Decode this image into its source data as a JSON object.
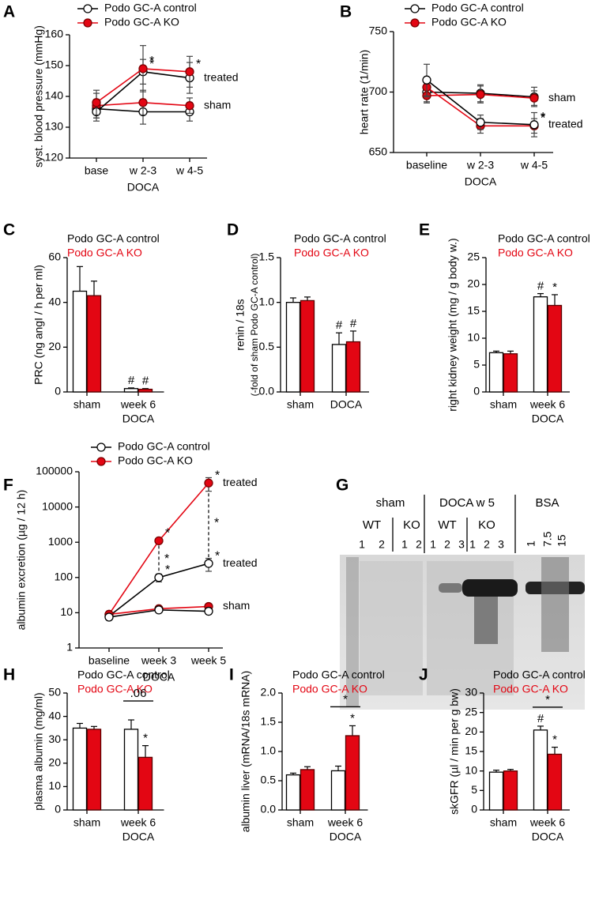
{
  "chart_data": [
    {
      "type": "line",
      "panel": "A",
      "ylabel": "syst. blood pressure (mmHg)",
      "xlabel": "DOCA",
      "categories": [
        "base",
        "w 2-3",
        "w 4-5"
      ],
      "ylim": [
        120,
        160
      ],
      "yticks": [
        120,
        130,
        140,
        150,
        160
      ],
      "legend": [
        {
          "name": "Podo GC-A control",
          "color": "#000000",
          "marker_fill": "#ffffff"
        },
        {
          "name": "Podo GC-A KO",
          "color": "#e30613",
          "marker_fill": "#e30613"
        }
      ],
      "series": [
        {
          "color": "#000000",
          "marker_fill": "#ffffff",
          "values": [
            136,
            135,
            135
          ],
          "errors": [
            3,
            4,
            3
          ]
        },
        {
          "color": "#e30613",
          "marker_fill": "#e30613",
          "values": [
            137,
            138,
            137
          ],
          "errors": [
            4,
            4,
            2.5
          ],
          "label": "sham"
        },
        {
          "color": "#000000",
          "marker_fill": "#ffffff",
          "values": [
            135,
            148,
            146
          ],
          "errors": [
            3,
            4,
            5
          ],
          "stars": [
            null,
            "*",
            null
          ],
          "label": "treated"
        },
        {
          "color": "#e30613",
          "marker_fill": "#e30613",
          "values": [
            138,
            149,
            148
          ],
          "errors": [
            4,
            7.5,
            5
          ],
          "stars": [
            null,
            "*",
            "*"
          ]
        }
      ]
    },
    {
      "type": "line",
      "panel": "B",
      "ylabel": "heart rate (1/min)",
      "xlabel": "DOCA",
      "categories": [
        "baseline",
        "w 2-3",
        "w 4-5"
      ],
      "ylim": [
        650,
        750
      ],
      "yticks": [
        650,
        700,
        750
      ],
      "legend": [
        {
          "name": "Podo GC-A control",
          "color": "#000000",
          "marker_fill": "#ffffff"
        },
        {
          "name": "Podo GC-A KO",
          "color": "#e30613",
          "marker_fill": "#e30613"
        }
      ],
      "series": [
        {
          "color": "#000000",
          "marker_fill": "#ffffff",
          "values": [
            700,
            699,
            696
          ],
          "errors": [
            8,
            7,
            8
          ]
        },
        {
          "color": "#e30613",
          "marker_fill": "#e30613",
          "values": [
            697,
            698,
            695
          ],
          "errors": [
            6,
            7,
            6
          ],
          "label": "sham"
        },
        {
          "color": "#e30613",
          "marker_fill": "#e30613",
          "values": [
            704,
            672,
            672
          ],
          "errors": [
            8,
            6,
            6
          ],
          "stars": [
            null,
            null,
            "*"
          ]
        },
        {
          "color": "#000000",
          "marker_fill": "#ffffff",
          "values": [
            710,
            675,
            673
          ],
          "errors": [
            13,
            6,
            10
          ],
          "stars": [
            null,
            null,
            "*"
          ],
          "label": "treated"
        }
      ]
    },
    {
      "type": "bar",
      "panel": "C",
      "ylabel": "PRC (ng angI / h per ml)",
      "xlabel": "DOCA",
      "categories": [
        "sham",
        "week 6"
      ],
      "ylim": [
        0,
        60
      ],
      "yticks": [
        0,
        20,
        40,
        60
      ],
      "series": [
        {
          "name": "Podo GC-A control",
          "color": "#000000",
          "fill": "#ffffff",
          "values": [
            45,
            1.5
          ],
          "errors": [
            11,
            0.3
          ],
          "marks": [
            null,
            "#"
          ]
        },
        {
          "name": "Podo GC-A KO",
          "color": "#e30613",
          "fill": "#e30613",
          "values": [
            43,
            1.2
          ],
          "errors": [
            6.5,
            0.3
          ],
          "marks": [
            null,
            "#"
          ]
        }
      ]
    },
    {
      "type": "bar",
      "panel": "D",
      "ylabel": [
        "renin / 18s",
        "(-fold of sham Podo GC-A control)"
      ],
      "categories": [
        "sham",
        "DOCA"
      ],
      "ylim": [
        0,
        1.5
      ],
      "yticks": [
        {
          "value": 0,
          "label": "0.0"
        },
        {
          "value": 0.5,
          "label": "0.5"
        },
        {
          "value": 1,
          "label": "1.0"
        },
        {
          "value": 1.5,
          "label": "1.5"
        }
      ],
      "series": [
        {
          "name": "Podo GC-A control",
          "color": "#000000",
          "fill": "#ffffff",
          "values": [
            1.0,
            0.53
          ],
          "errors": [
            0.05,
            0.13
          ],
          "marks": [
            null,
            "#"
          ]
        },
        {
          "name": "Podo GC-A KO",
          "color": "#e30613",
          "fill": "#e30613",
          "values": [
            1.02,
            0.56
          ],
          "errors": [
            0.04,
            0.12
          ],
          "marks": [
            null,
            "#"
          ]
        }
      ]
    },
    {
      "type": "bar",
      "panel": "E",
      "ylabel": "right kidney weight (mg / g body w.)",
      "xlabel": "DOCA",
      "categories": [
        "sham",
        "week 6"
      ],
      "ylim": [
        0,
        25
      ],
      "yticks": [
        0,
        5,
        10,
        15,
        20,
        25
      ],
      "series": [
        {
          "name": "Podo GC-A control",
          "color": "#000000",
          "fill": "#ffffff",
          "values": [
            7.3,
            17.7
          ],
          "errors": [
            0.3,
            0.6
          ],
          "marks": [
            null,
            "#"
          ]
        },
        {
          "name": "Podo GC-A KO",
          "color": "#e30613",
          "fill": "#e30613",
          "values": [
            7.1,
            16.1
          ],
          "errors": [
            0.5,
            2
          ],
          "marks": [
            null,
            "*"
          ]
        }
      ]
    },
    {
      "type": "line",
      "panel": "F",
      "ylabel": "albumin excretion (µg / 12 h)",
      "xlabel": "DOCA",
      "log_scale": true,
      "categories": [
        "baseline",
        "week 3",
        "week 5"
      ],
      "ylim": [
        1,
        100000
      ],
      "yticks": [
        1,
        10,
        100,
        1000,
        10000,
        100000
      ],
      "legend": [
        {
          "name": "Podo GC-A control",
          "color": "#000000",
          "marker_fill": "#ffffff"
        },
        {
          "name": "Podo GC-A KO",
          "color": "#e30613",
          "marker_fill": "#e30613"
        }
      ],
      "comparison_labels": [
        null,
        "*",
        "*"
      ],
      "series": [
        {
          "color": "#e30613",
          "marker_fill": "#e30613",
          "values": [
            9,
            1100,
            48000
          ],
          "errors": [
            1,
            150,
            20000
          ],
          "stars": [
            null,
            "*",
            "*"
          ],
          "label": "treated"
        },
        {
          "color": "#000000",
          "marker_fill": "#ffffff",
          "values": [
            8,
            100,
            250
          ],
          "errors": [
            1,
            25,
            100
          ],
          "stars": [
            null,
            "*",
            "*"
          ],
          "label": "treated"
        },
        {
          "color": "#e30613",
          "marker_fill": "#e30613",
          "values": [
            9,
            13,
            15
          ],
          "errors": [
            1,
            2,
            2
          ],
          "label": "sham"
        },
        {
          "color": "#000000",
          "marker_fill": "#ffffff",
          "values": [
            7.5,
            12,
            11
          ],
          "errors": [
            1,
            2,
            2
          ]
        }
      ]
    },
    {
      "type": "gel",
      "panel": "G",
      "groups": [
        {
          "label": "sham",
          "subgroups": [
            {
              "label": "WT",
              "lanes": [
                "1",
                "2"
              ]
            },
            {
              "label": "KO",
              "lanes": [
                "1",
                "2"
              ]
            }
          ]
        },
        {
          "label": "DOCA w 5",
          "subgroups": [
            {
              "label": "WT",
              "lanes": [
                "1",
                "2",
                "3"
              ]
            },
            {
              "label": "KO",
              "lanes": [
                "1",
                "2",
                "3"
              ]
            }
          ]
        },
        {
          "label": "BSA",
          "lanes": [
            "1",
            "7.5",
            "15"
          ]
        }
      ]
    },
    {
      "type": "bar",
      "panel": "H",
      "ylabel": "plasma albumin (mg/ml)",
      "xlabel": "DOCA",
      "bracket": ".06",
      "categories": [
        "sham",
        "week 6"
      ],
      "ylim": [
        0,
        50
      ],
      "yticks": [
        0,
        10,
        20,
        30,
        40,
        50
      ],
      "series": [
        {
          "name": "Podo GC-A control",
          "color": "#000000",
          "fill": "#ffffff",
          "values": [
            35,
            34.5
          ],
          "errors": [
            2,
            4
          ]
        },
        {
          "name": "Podo GC-A KO",
          "color": "#e30613",
          "fill": "#e30613",
          "values": [
            34.5,
            22.5
          ],
          "errors": [
            1.2,
            5
          ],
          "marks": [
            null,
            "*"
          ]
        }
      ]
    },
    {
      "type": "bar",
      "panel": "I",
      "ylabel": "albumin liver (mRNA/18s mRNA)",
      "xlabel": "DOCA",
      "bracket": "*",
      "categories": [
        "sham",
        "week 6"
      ],
      "ylim": [
        0,
        2
      ],
      "yticks": [
        {
          "value": 0,
          "label": "0.0"
        },
        {
          "value": 0.5,
          "label": "0.5"
        },
        {
          "value": 1,
          "label": "1.0"
        },
        {
          "value": 1.5,
          "label": "1.5"
        },
        {
          "value": 2,
          "label": "2.0"
        }
      ],
      "series": [
        {
          "name": "Podo GC-A control",
          "color": "#000000",
          "fill": "#ffffff",
          "values": [
            0.6,
            0.67
          ],
          "errors": [
            0.03,
            0.08
          ]
        },
        {
          "name": "Podo GC-A KO",
          "color": "#e30613",
          "fill": "#e30613",
          "values": [
            0.69,
            1.27
          ],
          "errors": [
            0.05,
            0.17
          ],
          "marks": [
            null,
            "*"
          ]
        }
      ]
    },
    {
      "type": "bar",
      "panel": "J",
      "ylabel": "skGFR (µl / min per g bw)",
      "xlabel": "DOCA",
      "bracket": "*",
      "categories": [
        "sham",
        "week 6"
      ],
      "ylim": [
        0,
        30
      ],
      "yticks": [
        0,
        5,
        10,
        15,
        20,
        25,
        30
      ],
      "series": [
        {
          "name": "Podo GC-A control",
          "color": "#000000",
          "fill": "#ffffff",
          "values": [
            9.7,
            20.5
          ],
          "errors": [
            0.5,
            1
          ],
          "marks": [
            null,
            "#"
          ]
        },
        {
          "name": "Podo GC-A KO",
          "color": "#e30613",
          "fill": "#e30613",
          "values": [
            10,
            14.3
          ],
          "errors": [
            0.4,
            1.8
          ],
          "marks": [
            null,
            "*"
          ]
        }
      ]
    }
  ]
}
